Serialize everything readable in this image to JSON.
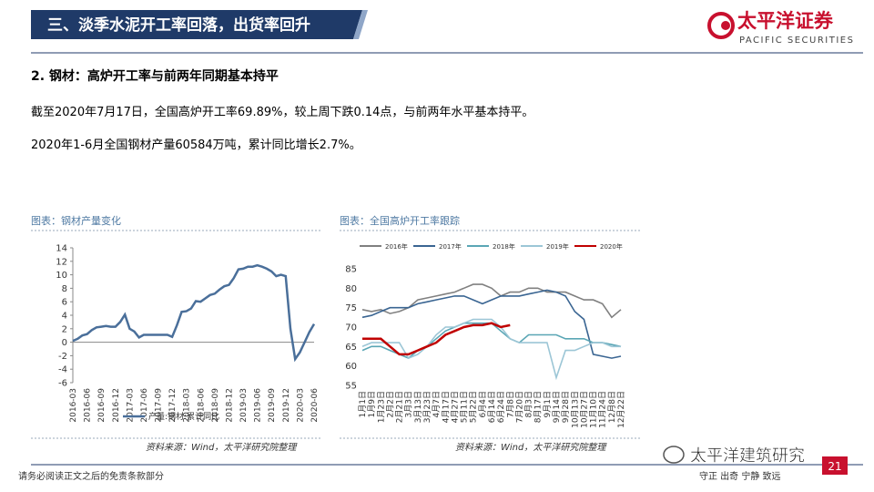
{
  "header": {
    "title": "三、淡季水泥开工率回落，出货率回升",
    "logo_cn": "太平洋证券",
    "logo_en": "PACIFIC SECURITIES"
  },
  "body": {
    "heading": "2. 钢材：高炉开工率与前两年同期基本持平",
    "paragraphs": [
      "截至2020年7月17日，全国高炉开工率69.89%，较上周下跌0.14点，与前两年水平基本持平。",
      "2020年1-6月全国钢材产量60584万吨，累计同比增长2.7%。"
    ]
  },
  "footer": {
    "disclaimer": "请务必阅读正文之后的免责条款部分",
    "motto": "守正 出奇 宁静 致远",
    "page": "21",
    "watermark": "太平洋建筑研究"
  },
  "chart_data": [
    {
      "type": "line",
      "title": "图表：钢材产量变化",
      "source": "资料来源：Wind，太平洋研究院整理",
      "legend": "bottom",
      "categories": [
        "2016-03",
        null,
        null,
        "2016-06",
        null,
        null,
        "2016-09",
        null,
        null,
        "2016-12",
        null,
        null,
        "2017-03",
        null,
        null,
        "2017-06",
        null,
        null,
        "2017-09",
        null,
        null,
        "2017-12",
        null,
        null,
        "2018-03",
        null,
        null,
        "2018-06",
        null,
        null,
        "2018-09",
        null,
        null,
        "2018-12",
        null,
        null,
        "2019-03",
        null,
        null,
        "2019-06",
        null,
        null,
        "2019-09",
        null,
        null,
        "2019-12",
        null,
        null,
        "2020-03",
        null,
        null,
        "2020-06"
      ],
      "series": [
        {
          "name": "产量:钢材:累计同比",
          "color": "#4a6f9a",
          "values": [
            0.2,
            0.5,
            1.0,
            1.2,
            1.8,
            2.2,
            2.3,
            2.4,
            2.3,
            2.3,
            3.0,
            4.1,
            2.0,
            1.6,
            0.7,
            1.1,
            1.1,
            1.1,
            1.1,
            1.1,
            1.1,
            0.8,
            2.5,
            4.5,
            4.6,
            5.0,
            6.1,
            6.0,
            6.5,
            7.0,
            7.2,
            7.8,
            8.3,
            8.5,
            9.5,
            10.8,
            10.9,
            11.2,
            11.2,
            11.4,
            11.2,
            10.9,
            10.5,
            9.8,
            10.0,
            9.8,
            2.0,
            -2.5,
            -1.5,
            0,
            1.5,
            2.7
          ]
        }
      ],
      "ylim": [
        -6,
        14
      ],
      "yticks": [
        -6,
        -4,
        -2,
        0,
        2,
        4,
        6,
        8,
        10,
        12,
        14
      ]
    },
    {
      "type": "line",
      "title": "图表：全国高炉开工率跟踪",
      "source": "资料来源：Wind，太平洋研究院整理",
      "legend": "top",
      "categories": [
        "1月1日",
        "1月9日",
        "1月23日",
        "2月2日",
        "2月21日",
        "3月3日",
        "3月13日",
        "3月23日",
        "4月7日",
        "4月17日",
        "4月27日",
        "5月11日",
        "5月22日",
        "6月4日",
        "6月14日",
        "6月24日",
        "7月8日",
        "7月20日",
        "8月3日",
        "8月17日",
        "9月1日",
        "9月14日",
        "9月28日",
        "10月13日",
        "10月27日",
        "11月10日",
        "11月24日",
        "12月8日",
        "12月22日"
      ],
      "series": [
        {
          "name": "2016年",
          "color": "#808080",
          "values": [
            74.5,
            74,
            74.5,
            73.5,
            74,
            75,
            77,
            77.5,
            78,
            78.5,
            79,
            80,
            81,
            81,
            80,
            78,
            79,
            79,
            80,
            80,
            79,
            79,
            79,
            78,
            77,
            77,
            76,
            72.5,
            74.5
          ]
        },
        {
          "name": "2017年",
          "color": "#3a6592",
          "values": [
            72.5,
            73,
            74,
            75,
            75,
            75,
            76,
            76.5,
            77,
            77.5,
            78,
            78,
            77,
            76,
            77,
            78,
            78,
            78,
            78.5,
            79,
            79.5,
            79,
            78,
            74,
            72,
            63,
            62.5,
            62,
            62.5
          ]
        },
        {
          "name": "2018年",
          "color": "#5aa6b5",
          "values": [
            64,
            65,
            65,
            64,
            63,
            62,
            64,
            65,
            67,
            69,
            70,
            71,
            71,
            71,
            71,
            69,
            67,
            66,
            68,
            68,
            68,
            68,
            67,
            67,
            67,
            66,
            66,
            65.5,
            65
          ]
        },
        {
          "name": "2019年",
          "color": "#9cc6d6",
          "values": [
            65,
            66,
            66,
            66,
            66,
            62,
            63,
            65,
            68,
            70,
            70,
            71,
            72,
            72,
            72,
            70,
            67,
            66,
            66,
            66,
            66,
            57,
            64,
            64,
            65,
            66,
            66,
            65,
            65
          ]
        },
        {
          "name": "2020年",
          "color": "#c00000",
          "values": [
            67,
            67,
            67,
            65,
            63,
            63,
            64,
            65,
            66,
            68,
            69,
            70,
            70.5,
            70.5,
            71,
            70,
            70.5,
            null,
            null,
            null,
            null,
            null,
            null,
            null,
            null,
            null,
            null,
            null,
            null
          ]
        }
      ],
      "ylim": [
        55,
        85
      ],
      "yticks": [
        55,
        60,
        65,
        70,
        75,
        80,
        85
      ]
    }
  ]
}
